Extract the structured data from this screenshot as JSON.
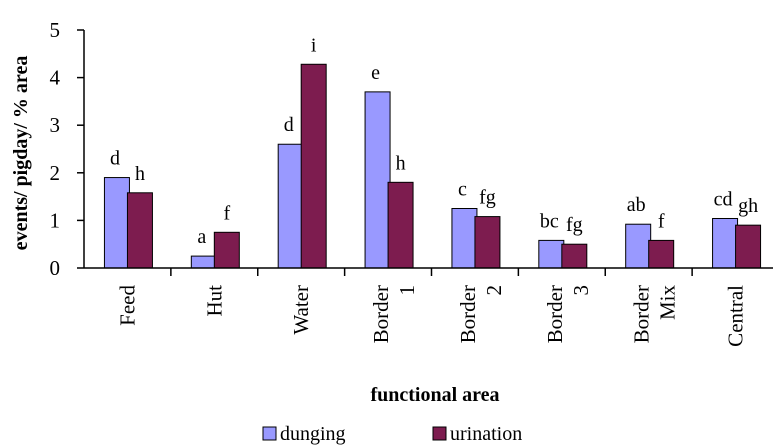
{
  "chart_data": {
    "type": "bar",
    "title": "",
    "xlabel": "functional area",
    "ylabel": "events/ pigday/ % area",
    "ylim": [
      0,
      5
    ],
    "yticks": [
      "0",
      "1",
      "2",
      "3",
      "4",
      "5"
    ],
    "grid": false,
    "legend_position": "bottom",
    "categories": [
      [
        "Feed"
      ],
      [
        "Hut"
      ],
      [
        "Water"
      ],
      [
        "Border",
        "1"
      ],
      [
        "Border",
        "2"
      ],
      [
        "Border",
        "3"
      ],
      [
        "Border",
        "Mix"
      ],
      [
        "Central"
      ]
    ],
    "series": [
      {
        "name": "dunging",
        "color": "#9999ff",
        "values": [
          1.9,
          0.25,
          2.6,
          3.7,
          1.25,
          0.58,
          0.92,
          1.04
        ],
        "letters": [
          "d",
          "a",
          "d",
          "e",
          "c",
          "bc",
          "ab",
          "cd"
        ]
      },
      {
        "name": "urination",
        "color": "#7d1c4f",
        "values": [
          1.58,
          0.75,
          4.28,
          1.8,
          1.08,
          0.5,
          0.58,
          0.9
        ],
        "letters": [
          "h",
          "f",
          "i",
          "h",
          "fg",
          "fg",
          "f",
          "gh"
        ]
      }
    ]
  }
}
